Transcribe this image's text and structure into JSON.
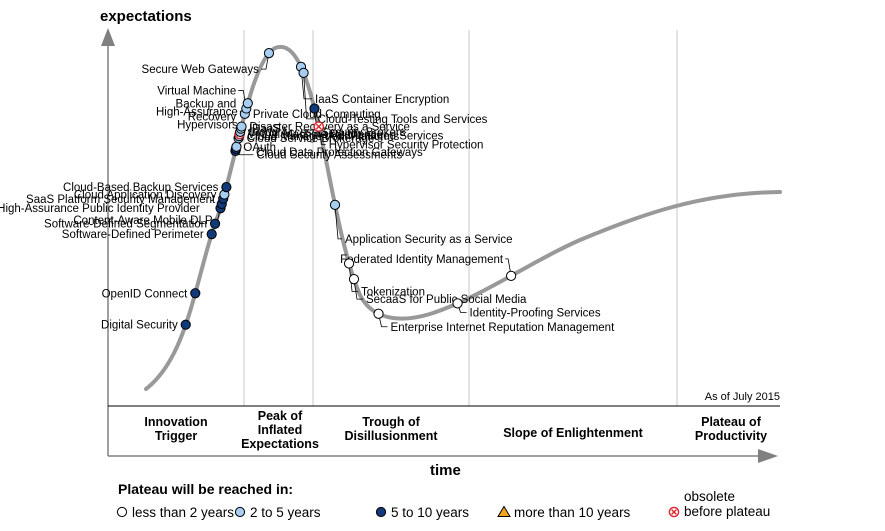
{
  "chart_data": {
    "type": "scatter",
    "title": "",
    "ylabel": "expectations",
    "xlabel": "time",
    "as_of": "As of July 2015",
    "phases": [
      {
        "lines": [
          "Innovation",
          "Trigger"
        ]
      },
      {
        "lines": [
          "Peak of",
          "Inflated",
          "Expectations"
        ]
      },
      {
        "lines": [
          "Trough of",
          "Disillusionment"
        ]
      },
      {
        "lines": [
          "Slope of Enlightenment"
        ]
      },
      {
        "lines": [
          "Plateau of",
          "Productivity"
        ]
      }
    ],
    "legend": {
      "title": "Plateau will be reached in:",
      "items": [
        {
          "key": "lt2",
          "lines": [
            "less than 2 years"
          ],
          "color": "#ffffff"
        },
        {
          "key": "2to5",
          "lines": [
            "2 to 5 years"
          ],
          "color": "#a7cdf0"
        },
        {
          "key": "5to10",
          "lines": [
            "5 to 10 years"
          ],
          "color": "#123a7a"
        },
        {
          "key": "gt10",
          "lines": [
            "more than 10 years"
          ],
          "color": "#f2a51a"
        },
        {
          "key": "obsolete",
          "lines": [
            "obsolete",
            "before plateau"
          ],
          "color": "#d9262e"
        }
      ]
    },
    "technologies": [
      {
        "name": "Digital Security",
        "category": "5to10",
        "t": 0.07
      },
      {
        "name": "OpenID Connect",
        "category": "5to10",
        "t": 0.1
      },
      {
        "name": "Software-Defined Perimeter",
        "category": "5to10",
        "t": 0.156
      },
      {
        "name": "Software-Defined Segmentation",
        "category": "5to10",
        "t": 0.166
      },
      {
        "name": "Content-Aware Mobile DLP",
        "category": "5to10",
        "t": 0.181
      },
      {
        "name": "High-Assurance Public Identity Provider",
        "category": "5to10",
        "t": 0.185
      },
      {
        "name": "SaaS Platform Security Management",
        "category": "5to10",
        "t": 0.19
      },
      {
        "name": "Cloud Application Discovery",
        "category": "2to5",
        "t": 0.194
      },
      {
        "name": "Cloud-Based Backup Services",
        "category": "5to10",
        "t": 0.201
      },
      {
        "name": "OAuth",
        "category": "5to10",
        "t": 0.235
      },
      {
        "name": "Cloud Data Protection Gateways",
        "category": "5to10",
        "t": 0.237
      },
      {
        "name": "Cloud Security Assessments",
        "category": "2to5",
        "t": 0.239
      },
      {
        "name": "Cloud Service Brokerage",
        "category": "2to5",
        "t": 0.247
      },
      {
        "name": "Cloud Management Platforms",
        "category": "2to5",
        "t": 0.249
      },
      {
        "name": "Virtual Machine Resilience",
        "category": "obsolete",
        "t": 0.251
      },
      {
        "name": "Cloud Access Security Brokers",
        "category": "2to5",
        "t": 0.253
      },
      {
        "name": "IDaaS",
        "category": "2to5",
        "t": 0.256
      },
      {
        "name": "Disaster Recovery as a Service",
        "category": "2to5",
        "t": 0.258
      },
      {
        "name": "Private Cloud Computing",
        "category": "2to5",
        "t": 0.27
      },
      {
        "name": "Virtual Machine Backup and Recovery",
        "category": "2to5",
        "t": 0.275
      },
      {
        "name": "High-Assurance Hypervisors",
        "category": "2to5",
        "t": 0.28
      },
      {
        "name": "Secure Web Gateways",
        "category": "2to5",
        "t": 0.33
      },
      {
        "name": "IaaS Container Encryption",
        "category": "2to5",
        "t": 0.37
      },
      {
        "name": "Cloud-Testing Tools and Services",
        "category": "2to5",
        "t": 0.376
      },
      {
        "name": "IAM Managed Services",
        "category": "5to10",
        "t": 0.41
      },
      {
        "name": "Hypervisor Security Protection",
        "category": "obsolete",
        "t": 0.427
      },
      {
        "name": "Application Security as a Service",
        "category": "2to5",
        "t": 0.5
      },
      {
        "name": "Tokenization",
        "category": "lt2",
        "t": 0.555
      },
      {
        "name": "SecaaS for Public Social Media",
        "category": "lt2",
        "t": 0.57
      },
      {
        "name": "Enterprise Internet Reputation Management",
        "category": "lt2",
        "t": 0.61
      },
      {
        "name": "Identity-Proofing Services",
        "category": "lt2",
        "t": 0.685
      },
      {
        "name": "Federated Identity Management",
        "category": "lt2",
        "t": 0.74
      }
    ]
  }
}
